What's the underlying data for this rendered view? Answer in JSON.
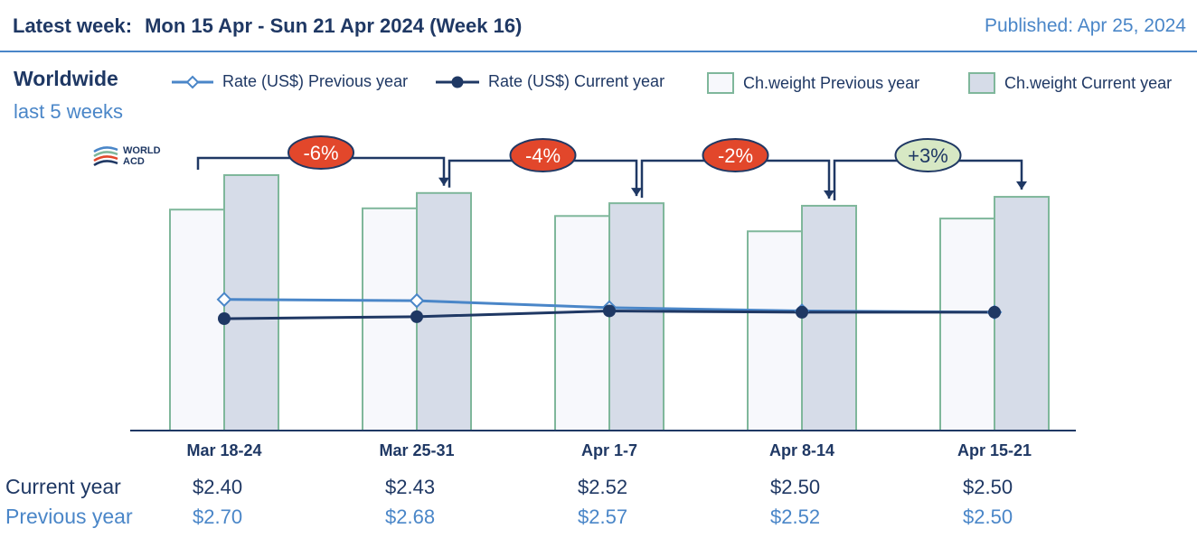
{
  "header": {
    "latest_label": "Latest week:",
    "week_text": "Mon 15 Apr - Sun 21 Apr 2024 (Week 16)",
    "published": "Published: Apr 25, 2024"
  },
  "region": "Worldwide",
  "period": "last 5 weeks",
  "logo": {
    "line1": "WORLD",
    "line2": "ACD"
  },
  "legend": {
    "rate_prev": "Rate (US$) Previous year",
    "rate_cur": "Rate (US$) Current year",
    "cw_prev": "Ch.weight Previous year",
    "cw_cur": "Ch.weight Current year"
  },
  "colors": {
    "dark_navy": "#1f3864",
    "light_blue": "#4a86c8",
    "bar_prev_fill": "#f7f8fc",
    "bar_cur_fill": "#d6dce8",
    "bar_border": "#7fb79b",
    "badge_negative": "#e2472b",
    "badge_positive": "#d7e8c4"
  },
  "chart_data": {
    "type": "bar",
    "categories": [
      "Mar 18-24",
      "Mar 25-31",
      "Apr 1-7",
      "Apr 8-14",
      "Apr 15-21"
    ],
    "chargeable_weight_index": {
      "previous_year": [
        86.5,
        87,
        84,
        78,
        83
      ],
      "current_year": [
        100,
        93,
        89,
        88,
        91.5
      ]
    },
    "rate_usd": {
      "current_year": [
        2.4,
        2.43,
        2.52,
        2.5,
        2.5
      ],
      "previous_year": [
        2.7,
        2.68,
        2.57,
        2.52,
        2.5
      ]
    },
    "week_on_week_change": [
      "-6%",
      "-4%",
      "-2%",
      "+3%"
    ],
    "row_labels": {
      "current_year": "Current year",
      "previous_year": "Previous year"
    },
    "value_labels": {
      "current_year": [
        "$2.40",
        "$2.43",
        "$2.52",
        "$2.50",
        "$2.50"
      ],
      "previous_year": [
        "$2.70",
        "$2.68",
        "$2.57",
        "$2.52",
        "$2.50"
      ]
    },
    "legend_position": "top",
    "grid": false
  }
}
